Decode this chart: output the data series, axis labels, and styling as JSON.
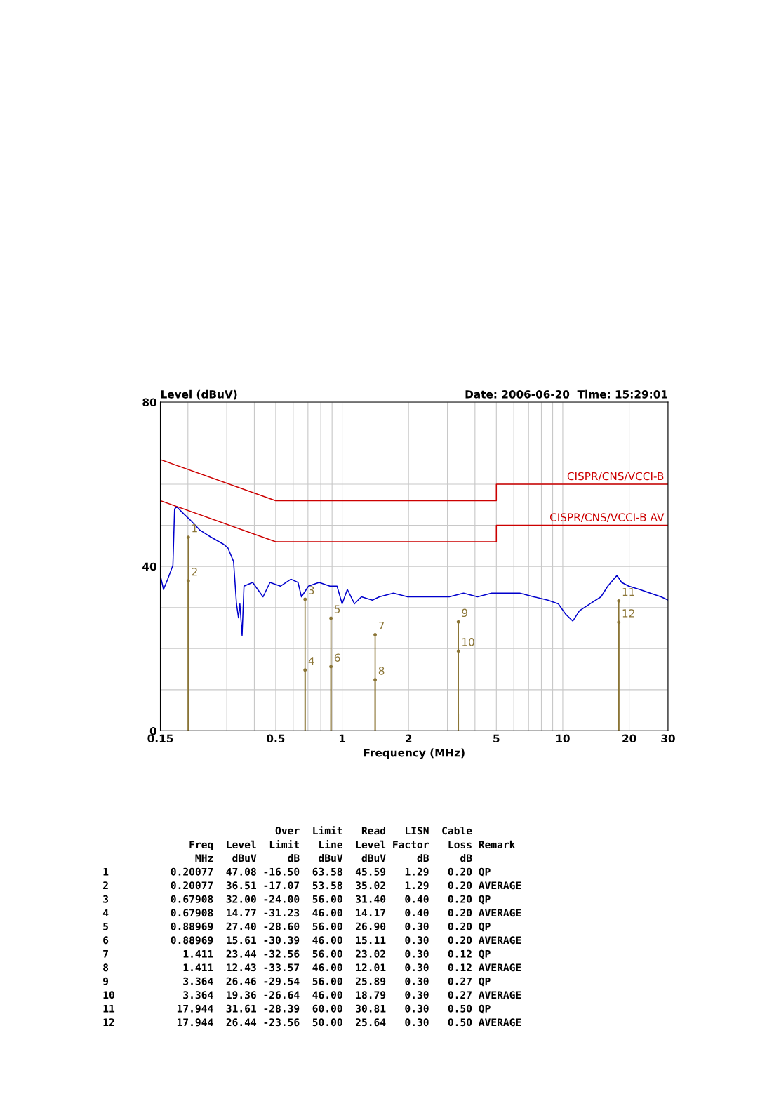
{
  "chart_data": {
    "type": "line",
    "subtitle": "Date: 2006-06-20  Time: 15:29:01",
    "xlabel": "Frequency (MHz)",
    "ylabel": "Level (dBuV)",
    "log": "x",
    "xlim": [
      0.15,
      30
    ],
    "xticks": [
      0.15,
      0.5,
      1,
      2,
      5,
      10,
      20,
      30,
      {
        "value": 0.2,
        "label": null
      },
      {
        "value": 0.3,
        "label": null
      },
      {
        "value": 0.4,
        "label": null
      },
      {
        "value": 0.6,
        "label": null
      },
      {
        "value": 0.7,
        "label": null
      },
      {
        "value": 0.8,
        "label": null
      },
      {
        "value": 0.9,
        "label": null
      },
      {
        "value": 3,
        "label": null
      },
      {
        "value": 4,
        "label": null
      },
      {
        "value": 6,
        "label": null
      },
      {
        "value": 7,
        "label": null
      },
      {
        "value": 8,
        "label": null
      },
      {
        "value": 9,
        "label": null
      }
    ],
    "ylim": [
      0,
      80
    ],
    "yticks": [
      0,
      {
        "value": 10,
        "label": null
      },
      {
        "value": 20,
        "label": null
      },
      {
        "value": 30,
        "label": null
      },
      40,
      {
        "value": 50,
        "label": null
      },
      {
        "value": 60,
        "label": null
      },
      {
        "value": 70,
        "label": null
      },
      80
    ],
    "grid": true,
    "legend": false,
    "series": [
      {
        "color": "#0000cc",
        "x": [
          0.15,
          0.155,
          0.162,
          0.171,
          0.174,
          0.178,
          0.188,
          0.203,
          0.226,
          0.253,
          0.288,
          0.303,
          0.322,
          0.332,
          0.339,
          0.344,
          0.352,
          0.359,
          0.393,
          0.438,
          0.471,
          0.525,
          0.586,
          0.631,
          0.654,
          0.704,
          0.786,
          0.88,
          0.948,
          1.0,
          1.056,
          1.137,
          1.223,
          1.37,
          1.475,
          1.71,
          1.98,
          2.29,
          2.65,
          3.06,
          3.55,
          4.11,
          4.76,
          5.51,
          6.38,
          7.39,
          8.56,
          9.55,
          10.3,
          11.1,
          11.9,
          13.3,
          14.9,
          16.0,
          17.6,
          18.5,
          19.9,
          22.3,
          24.9,
          27.9,
          30.0
        ],
        "values": [
          37.8,
          34.4,
          36.9,
          40.3,
          54.0,
          54.5,
          53.2,
          51.5,
          48.9,
          47.2,
          45.5,
          44.6,
          41.2,
          30.9,
          27.5,
          30.9,
          23.2,
          35.2,
          36.1,
          32.6,
          36.1,
          35.2,
          36.9,
          36.1,
          32.6,
          35.2,
          36.1,
          35.2,
          35.2,
          30.9,
          34.4,
          30.9,
          32.6,
          31.8,
          32.6,
          33.5,
          32.6,
          32.6,
          32.6,
          32.6,
          33.5,
          32.6,
          33.5,
          33.5,
          33.5,
          32.6,
          31.8,
          30.9,
          28.4,
          26.7,
          29.2,
          30.9,
          32.6,
          35.2,
          37.8,
          36.1,
          35.2,
          34.4,
          33.5,
          32.6,
          31.8
        ]
      },
      {
        "type": "line",
        "name": "CISPR/CNS/VCCI-B",
        "color": "#cc0000",
        "x": [
          0.15,
          0.5,
          5,
          5,
          30
        ],
        "values": [
          66,
          56,
          56,
          60,
          60
        ]
      },
      {
        "type": "line",
        "name": "CISPR/CNS/VCCI-B AV",
        "color": "#cc0000",
        "x": [
          0.15,
          0.5,
          5,
          5,
          30
        ],
        "values": [
          56,
          46,
          46,
          50,
          50
        ]
      },
      {
        "type": "lollipop",
        "color": "#8b7536",
        "x": [
          0.20077,
          0.20077,
          0.67908,
          0.67908,
          0.88969,
          0.88969,
          1.411,
          1.411,
          3.364,
          3.364,
          17.944,
          17.944
        ],
        "values": [
          47.1,
          36.5,
          32.0,
          14.8,
          27.4,
          15.6,
          23.4,
          12.4,
          26.5,
          19.4,
          31.6,
          26.4
        ]
      }
    ],
    "annotations": [
      {
        "text": "1",
        "x": 0.20077,
        "y": 47.1
      },
      {
        "text": "2",
        "x": 0.20077,
        "y": 36.5
      },
      {
        "text": "3",
        "x": 0.67908,
        "y": 32.0
      },
      {
        "text": "4",
        "x": 0.67908,
        "y": 14.8
      },
      {
        "text": "5",
        "x": 0.88969,
        "y": 27.4
      },
      {
        "text": "6",
        "x": 0.88969,
        "y": 15.6
      },
      {
        "text": "7",
        "x": 1.411,
        "y": 23.4
      },
      {
        "text": "8",
        "x": 1.411,
        "y": 12.4
      },
      {
        "text": "9",
        "x": 3.364,
        "y": 26.5
      },
      {
        "text": "10",
        "x": 3.364,
        "y": 19.4
      },
      {
        "text": "11",
        "x": 17.944,
        "y": 31.6
      },
      {
        "text": "12",
        "x": 17.944,
        "y": 26.4
      },
      "                            Over  Limit   Read   LISN  Cable",
      "              Freq  Level  Limit   Line  Level Factor   Loss Remark",
      "               MHz   dBuV     dB   dBuV   dBuV     dB     dB",
      "1          0.20077  47.08 -16.50  63.58  45.59   1.29   0.20 QP",
      "2          0.20077  36.51 -17.07  53.58  35.02   1.29   0.20 AVERAGE",
      "3          0.67908  32.00 -24.00  56.00  31.40   0.40   0.20 QP",
      "4          0.67908  14.77 -31.23  46.00  14.17   0.40   0.20 AVERAGE",
      "5          0.88969  27.40 -28.60  56.00  26.90   0.30   0.20 QP",
      "6          0.88969  15.61 -30.39  46.00  15.11   0.30   0.20 AVERAGE",
      "7            1.411  23.44 -32.56  56.00  23.02   0.30   0.12 QP",
      "8            1.411  12.43 -33.57  46.00  12.01   0.30   0.12 AVERAGE",
      "9            3.364  26.46 -29.54  56.00  25.89   0.30   0.27 QP",
      "10           3.364  19.36 -26.64  46.00  18.79   0.30   0.27 AVERAGE",
      "11          17.944  31.61 -28.39  60.00  30.81   0.30   0.50 QP",
      "12          17.944  26.44 -23.56  50.00  25.64   0.30   0.50 AVERAGE"
    ]
  }
}
